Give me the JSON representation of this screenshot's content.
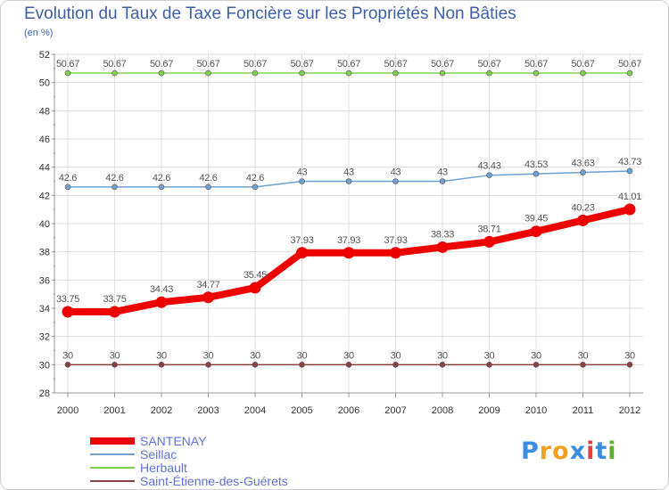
{
  "header": {
    "title": "Evolution du Taux de Taxe Foncière sur les Propriétés Non Bâties",
    "unit": "(en %)"
  },
  "logo": {
    "letters": [
      "P",
      "r",
      "o",
      "x",
      "i",
      "t",
      "i"
    ],
    "colors": [
      "#3a8de0",
      "#f0a020",
      "#f0a020",
      "#3a8de0",
      "#e04040",
      "#3a8de0",
      "#60b030"
    ]
  },
  "chart_data": {
    "type": "line",
    "title": "Evolution du Taux de Taxe Foncière sur les Propriétés Non Bâties",
    "ylabel": "(en %)",
    "xlabel": "",
    "x": [
      "2000",
      "2001",
      "2002",
      "2003",
      "2004",
      "2005",
      "2006",
      "2007",
      "2008",
      "2009",
      "2010",
      "2011",
      "2012"
    ],
    "ylim": [
      28,
      52
    ],
    "yticks": [
      28,
      30,
      32,
      34,
      36,
      38,
      40,
      42,
      44,
      46,
      48,
      50,
      52
    ],
    "grid": true,
    "legend_position": "bottom-left",
    "series": [
      {
        "name": "SANTENAY",
        "color": "#ee0000",
        "emphasis": true,
        "values": [
          33.75,
          33.75,
          34.43,
          34.77,
          35.45,
          37.93,
          37.93,
          37.93,
          38.33,
          38.71,
          39.45,
          40.23,
          41.01
        ],
        "labels": [
          "33.75",
          "33.75",
          "34.43",
          "34.77",
          "35.45",
          "37.93",
          "37.93",
          "37.93",
          "38.33",
          "38.71",
          "39.45",
          "40.23",
          "41.01"
        ]
      },
      {
        "name": "Seillac",
        "color": "#6fa0cf",
        "emphasis": false,
        "values": [
          42.6,
          42.6,
          42.6,
          42.6,
          42.6,
          43,
          43,
          43,
          43,
          43.43,
          43.53,
          43.63,
          43.73
        ],
        "labels": [
          "42.6",
          "42.6",
          "42.6",
          "42.6",
          "42.6",
          "43",
          "43",
          "43",
          "43",
          "43.43",
          "43.53",
          "43.63",
          "43.73"
        ]
      },
      {
        "name": "Herbault",
        "color": "#80d050",
        "emphasis": false,
        "values": [
          50.67,
          50.67,
          50.67,
          50.67,
          50.67,
          50.67,
          50.67,
          50.67,
          50.67,
          50.67,
          50.67,
          50.67,
          50.67
        ],
        "labels": [
          "50.67",
          "50.67",
          "50.67",
          "50.67",
          "50.67",
          "50.67",
          "50.67",
          "50.67",
          "50.67",
          "50.67",
          "50.67",
          "50.67",
          "50.67"
        ]
      },
      {
        "name": "Saint-Étienne-des-Guérets",
        "color": "#884040",
        "emphasis": false,
        "values": [
          30,
          30,
          30,
          30,
          30,
          30,
          30,
          30,
          30,
          30,
          30,
          30,
          30
        ],
        "labels": [
          "30",
          "30",
          "30",
          "30",
          "30",
          "30",
          "30",
          "30",
          "30",
          "30",
          "30",
          "30",
          "30"
        ]
      }
    ]
  }
}
